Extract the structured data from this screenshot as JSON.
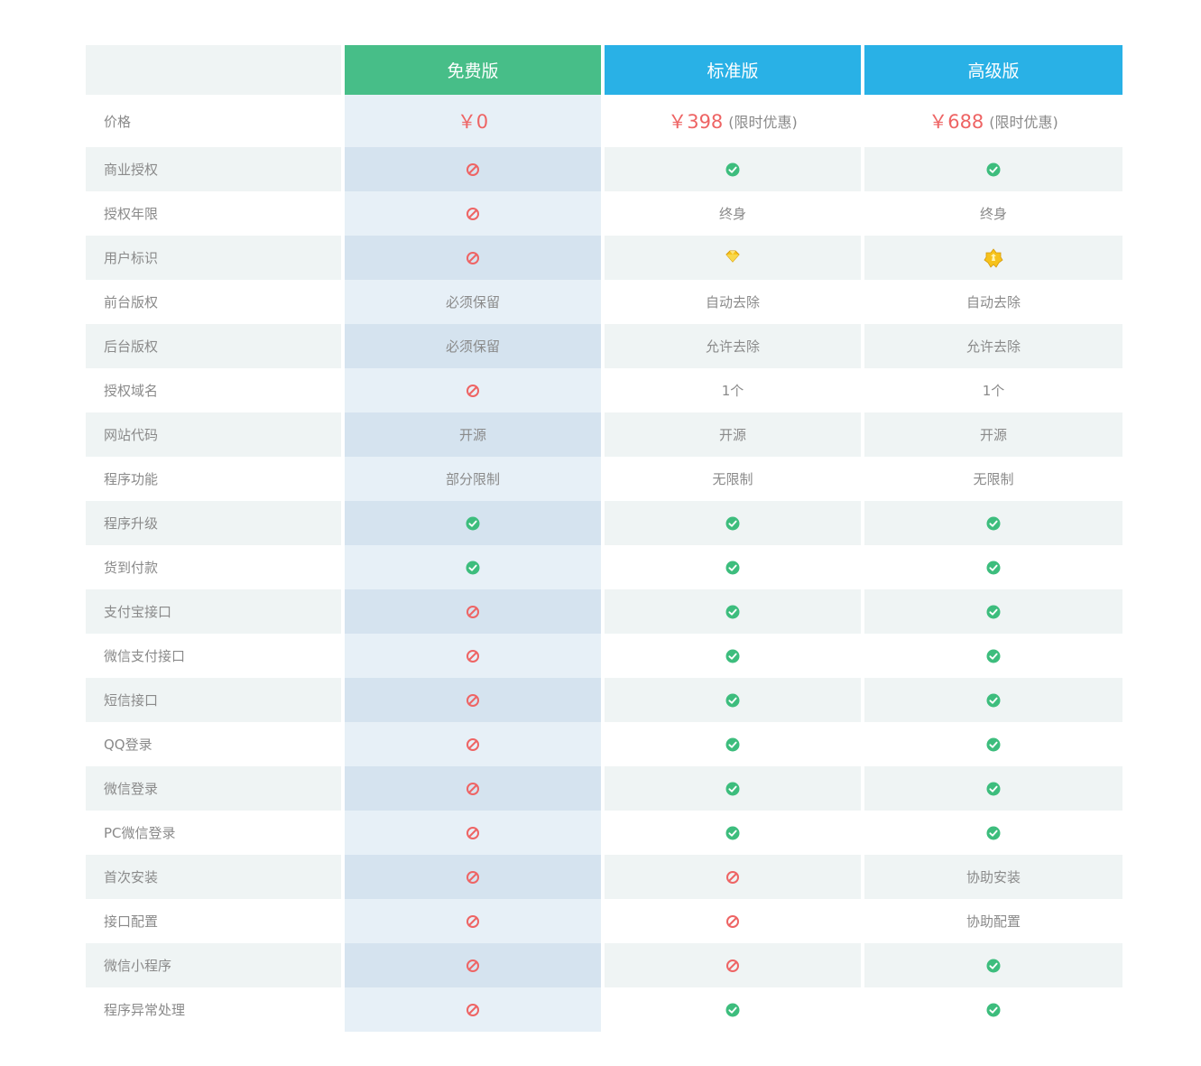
{
  "columns": {
    "free": "免费版",
    "standard": "标准版",
    "premium": "高级版"
  },
  "price": {
    "label": "价格",
    "free": "￥0",
    "standard": "￥398",
    "standard_note": "(限时优惠)",
    "premium": "￥688",
    "premium_note": "(限时优惠)"
  },
  "rows": [
    {
      "label": "商业授权",
      "free": {
        "icon": "no"
      },
      "standard": {
        "icon": "check"
      },
      "premium": {
        "icon": "check"
      }
    },
    {
      "label": "授权年限",
      "free": {
        "icon": "no"
      },
      "standard": {
        "text": "终身"
      },
      "premium": {
        "text": "终身"
      }
    },
    {
      "label": "用户标识",
      "free": {
        "icon": "no"
      },
      "standard": {
        "icon": "diamond-badge"
      },
      "premium": {
        "icon": "crown-badge"
      }
    },
    {
      "label": "前台版权",
      "free": {
        "text": "必须保留"
      },
      "standard": {
        "text": "自动去除"
      },
      "premium": {
        "text": "自动去除"
      }
    },
    {
      "label": "后台版权",
      "free": {
        "text": "必须保留"
      },
      "standard": {
        "text": "允许去除"
      },
      "premium": {
        "text": "允许去除"
      }
    },
    {
      "label": "授权域名",
      "free": {
        "icon": "no"
      },
      "standard": {
        "text": "1个"
      },
      "premium": {
        "text": "1个"
      }
    },
    {
      "label": "网站代码",
      "free": {
        "text": "开源"
      },
      "standard": {
        "text": "开源"
      },
      "premium": {
        "text": "开源"
      }
    },
    {
      "label": "程序功能",
      "free": {
        "text": "部分限制"
      },
      "standard": {
        "text": "无限制"
      },
      "premium": {
        "text": "无限制"
      }
    },
    {
      "label": "程序升级",
      "free": {
        "icon": "check"
      },
      "standard": {
        "icon": "check"
      },
      "premium": {
        "icon": "check"
      }
    },
    {
      "label": "货到付款",
      "free": {
        "icon": "check"
      },
      "standard": {
        "icon": "check"
      },
      "premium": {
        "icon": "check"
      }
    },
    {
      "label": "支付宝接口",
      "free": {
        "icon": "no"
      },
      "standard": {
        "icon": "check"
      },
      "premium": {
        "icon": "check"
      }
    },
    {
      "label": "微信支付接口",
      "free": {
        "icon": "no"
      },
      "standard": {
        "icon": "check"
      },
      "premium": {
        "icon": "check"
      }
    },
    {
      "label": "短信接口",
      "free": {
        "icon": "no"
      },
      "standard": {
        "icon": "check"
      },
      "premium": {
        "icon": "check"
      }
    },
    {
      "label": "QQ登录",
      "free": {
        "icon": "no"
      },
      "standard": {
        "icon": "check"
      },
      "premium": {
        "icon": "check"
      }
    },
    {
      "label": "微信登录",
      "free": {
        "icon": "no"
      },
      "standard": {
        "icon": "check"
      },
      "premium": {
        "icon": "check"
      }
    },
    {
      "label": "PC微信登录",
      "free": {
        "icon": "no"
      },
      "standard": {
        "icon": "check"
      },
      "premium": {
        "icon": "check"
      }
    },
    {
      "label": "首次安装",
      "free": {
        "icon": "no"
      },
      "standard": {
        "icon": "no"
      },
      "premium": {
        "text": "协助安装"
      }
    },
    {
      "label": "接口配置",
      "free": {
        "icon": "no"
      },
      "standard": {
        "icon": "no"
      },
      "premium": {
        "text": "协助配置"
      }
    },
    {
      "label": "微信小程序",
      "free": {
        "icon": "no"
      },
      "standard": {
        "icon": "no"
      },
      "premium": {
        "icon": "check"
      }
    },
    {
      "label": "程序异常处理",
      "free": {
        "icon": "no"
      },
      "standard": {
        "icon": "check"
      },
      "premium": {
        "icon": "check"
      }
    }
  ],
  "colors": {
    "free_header": "#47be88",
    "paid_header": "#29b1e6",
    "check": "#3dbd7d",
    "no": "#ee6464",
    "price": "#ee6464"
  }
}
